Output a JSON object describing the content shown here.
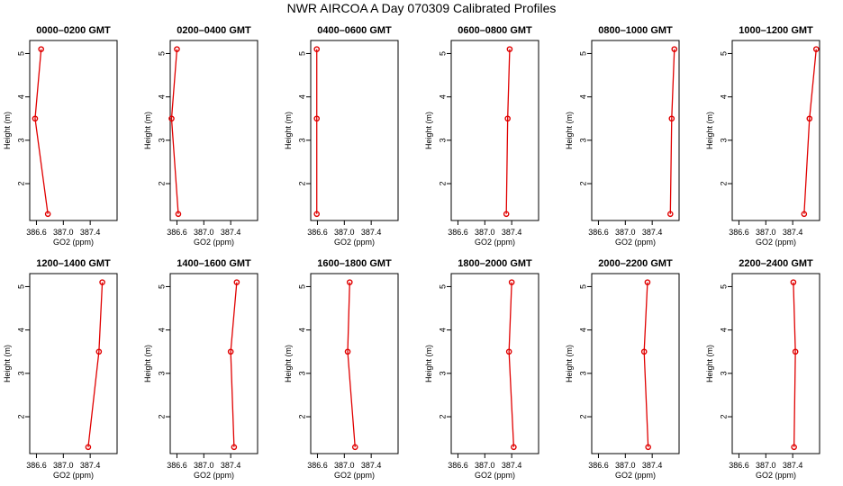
{
  "title": "NWR AIRCOA A  Day 070309  Calibrated Profiles",
  "colors": {
    "series": "#e00000",
    "axis": "#000000",
    "background": "#ffffff"
  },
  "chart_data": [
    {
      "type": "line",
      "title": "0000–0200 GMT",
      "xlabel": "GO2 (ppm)",
      "ylabel": "Height (m)",
      "xlim": [
        386.5,
        387.8
      ],
      "ylim": [
        1.15,
        5.3
      ],
      "xticks": [
        386.6,
        387.0,
        387.4
      ],
      "yticks": [
        2,
        3,
        4,
        5
      ],
      "grid": false,
      "x": [
        386.77,
        386.58,
        386.67
      ],
      "y": [
        1.3,
        3.5,
        5.1
      ]
    },
    {
      "type": "line",
      "title": "0200–0400 GMT",
      "xlabel": "GO2 (ppm)",
      "ylabel": "Height (m)",
      "xlim": [
        386.5,
        387.8
      ],
      "ylim": [
        1.15,
        5.3
      ],
      "xticks": [
        386.6,
        387.0,
        387.4
      ],
      "yticks": [
        2,
        3,
        4,
        5
      ],
      "grid": false,
      "x": [
        386.62,
        386.52,
        386.6
      ],
      "y": [
        1.3,
        3.5,
        5.1
      ]
    },
    {
      "type": "line",
      "title": "0400–0600 GMT",
      "xlabel": "GO2 (ppm)",
      "ylabel": "Height (m)",
      "xlim": [
        386.5,
        387.8
      ],
      "ylim": [
        1.15,
        5.3
      ],
      "xticks": [
        386.6,
        387.0,
        387.4
      ],
      "yticks": [
        2,
        3,
        4,
        5
      ],
      "grid": false,
      "x": [
        386.59,
        386.59,
        386.59
      ],
      "y": [
        1.3,
        3.5,
        5.1
      ]
    },
    {
      "type": "line",
      "title": "0600–0800 GMT",
      "xlabel": "GO2 (ppm)",
      "ylabel": "Height (m)",
      "xlim": [
        386.5,
        387.8
      ],
      "ylim": [
        1.15,
        5.3
      ],
      "xticks": [
        386.6,
        387.0,
        387.4
      ],
      "yticks": [
        2,
        3,
        4,
        5
      ],
      "grid": false,
      "x": [
        387.32,
        387.34,
        387.37
      ],
      "y": [
        1.3,
        3.5,
        5.1
      ]
    },
    {
      "type": "line",
      "title": "0800–1000 GMT",
      "xlabel": "GO2 (ppm)",
      "ylabel": "Height (m)",
      "xlim": [
        386.5,
        387.8
      ],
      "ylim": [
        1.15,
        5.3
      ],
      "xticks": [
        386.6,
        387.0,
        387.4
      ],
      "yticks": [
        2,
        3,
        4,
        5
      ],
      "grid": false,
      "x": [
        387.67,
        387.69,
        387.73
      ],
      "y": [
        1.3,
        3.5,
        5.1
      ]
    },
    {
      "type": "line",
      "title": "1000–1200 GMT",
      "xlabel": "GO2 (ppm)",
      "ylabel": "Height (m)",
      "xlim": [
        386.5,
        387.8
      ],
      "ylim": [
        1.15,
        5.3
      ],
      "xticks": [
        386.6,
        387.0,
        387.4
      ],
      "yticks": [
        2,
        3,
        4,
        5
      ],
      "grid": false,
      "x": [
        387.57,
        387.65,
        387.75
      ],
      "y": [
        1.3,
        3.5,
        5.1
      ]
    },
    {
      "type": "line",
      "title": "1200–1400 GMT",
      "xlabel": "GO2 (ppm)",
      "ylabel": "Height (m)",
      "xlim": [
        386.5,
        387.8
      ],
      "ylim": [
        1.15,
        5.3
      ],
      "xticks": [
        386.6,
        387.0,
        387.4
      ],
      "yticks": [
        2,
        3,
        4,
        5
      ],
      "grid": false,
      "x": [
        387.37,
        387.53,
        387.58
      ],
      "y": [
        1.3,
        3.5,
        5.1
      ]
    },
    {
      "type": "line",
      "title": "1400–1600 GMT",
      "xlabel": "GO2 (ppm)",
      "ylabel": "Height (m)",
      "xlim": [
        386.5,
        387.8
      ],
      "ylim": [
        1.15,
        5.3
      ],
      "xticks": [
        386.6,
        387.0,
        387.4
      ],
      "yticks": [
        2,
        3,
        4,
        5
      ],
      "grid": false,
      "x": [
        387.45,
        387.4,
        387.49
      ],
      "y": [
        1.3,
        3.5,
        5.1
      ]
    },
    {
      "type": "line",
      "title": "1600–1800 GMT",
      "xlabel": "GO2 (ppm)",
      "ylabel": "Height (m)",
      "xlim": [
        386.5,
        387.8
      ],
      "ylim": [
        1.15,
        5.3
      ],
      "xticks": [
        386.6,
        387.0,
        387.4
      ],
      "yticks": [
        2,
        3,
        4,
        5
      ],
      "grid": false,
      "x": [
        387.16,
        387.05,
        387.08
      ],
      "y": [
        1.3,
        3.5,
        5.1
      ]
    },
    {
      "type": "line",
      "title": "1800–2000 GMT",
      "xlabel": "GO2 (ppm)",
      "ylabel": "Height (m)",
      "xlim": [
        386.5,
        387.8
      ],
      "ylim": [
        1.15,
        5.3
      ],
      "xticks": [
        386.6,
        387.0,
        387.4
      ],
      "yticks": [
        2,
        3,
        4,
        5
      ],
      "grid": false,
      "x": [
        387.43,
        387.36,
        387.4
      ],
      "y": [
        1.3,
        3.5,
        5.1
      ]
    },
    {
      "type": "line",
      "title": "2000–2200 GMT",
      "xlabel": "GO2 (ppm)",
      "ylabel": "Height (m)",
      "xlim": [
        386.5,
        387.8
      ],
      "ylim": [
        1.15,
        5.3
      ],
      "xticks": [
        386.6,
        387.0,
        387.4
      ],
      "yticks": [
        2,
        3,
        4,
        5
      ],
      "grid": false,
      "x": [
        387.34,
        387.28,
        387.33
      ],
      "y": [
        1.3,
        3.5,
        5.1
      ]
    },
    {
      "type": "line",
      "title": "2200–2400 GMT",
      "xlabel": "GO2 (ppm)",
      "ylabel": "Height (m)",
      "xlim": [
        386.5,
        387.8
      ],
      "ylim": [
        1.15,
        5.3
      ],
      "xticks": [
        386.6,
        387.0,
        387.4
      ],
      "yticks": [
        2,
        3,
        4,
        5
      ],
      "grid": false,
      "x": [
        387.42,
        387.44,
        387.41
      ],
      "y": [
        1.3,
        3.5,
        5.1
      ]
    }
  ]
}
